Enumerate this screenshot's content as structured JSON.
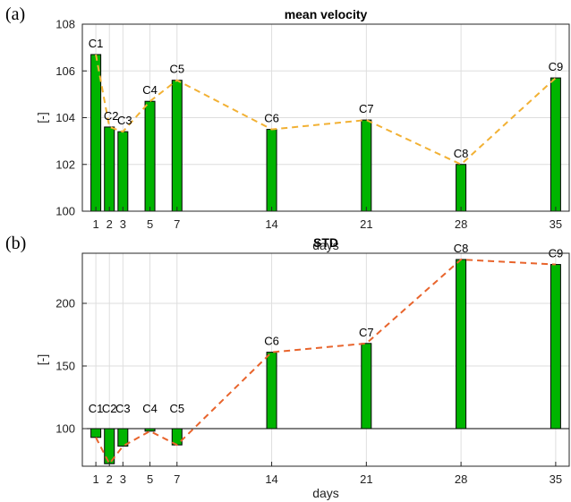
{
  "chart_data": [
    {
      "panel": "(a)",
      "type": "bar",
      "title": "mean velocity",
      "xlabel": "days",
      "ylabel": "[-]",
      "x": [
        1,
        2,
        3,
        5,
        7,
        14,
        21,
        28,
        35
      ],
      "xticks": [
        1,
        2,
        3,
        5,
        7,
        14,
        21,
        28,
        35
      ],
      "yticks": [
        100,
        102,
        104,
        106,
        108
      ],
      "ylim": [
        100,
        108
      ],
      "xlim": [
        0,
        36
      ],
      "baseline": 100,
      "labels": [
        "C1",
        "C2",
        "C3",
        "C4",
        "C5",
        "C6",
        "C7",
        "C8",
        "C9"
      ],
      "values": [
        106.7,
        103.6,
        103.4,
        104.7,
        105.6,
        103.5,
        103.9,
        102.0,
        105.7
      ],
      "grid": true,
      "bar_color": "#00b400",
      "line_color": "#f2b134",
      "line_style": "dashed"
    },
    {
      "panel": "(b)",
      "type": "bar",
      "title": "STD",
      "xlabel": "days",
      "ylabel": "[-]",
      "x": [
        1,
        2,
        3,
        5,
        7,
        14,
        21,
        28,
        35
      ],
      "xticks": [
        1,
        2,
        3,
        5,
        7,
        14,
        21,
        28,
        35
      ],
      "yticks": [
        100,
        150,
        200
      ],
      "ylim": [
        70,
        240
      ],
      "xlim": [
        0,
        36
      ],
      "baseline": 100,
      "labels": [
        "C1",
        "C2",
        "C3",
        "C4",
        "C5",
        "C6",
        "C7",
        "C8",
        "C9"
      ],
      "values": [
        93,
        72,
        86,
        98,
        87,
        161,
        168,
        235,
        231
      ],
      "grid": true,
      "bar_color": "#00b400",
      "line_color": "#e8642c",
      "line_style": "dashed"
    }
  ]
}
